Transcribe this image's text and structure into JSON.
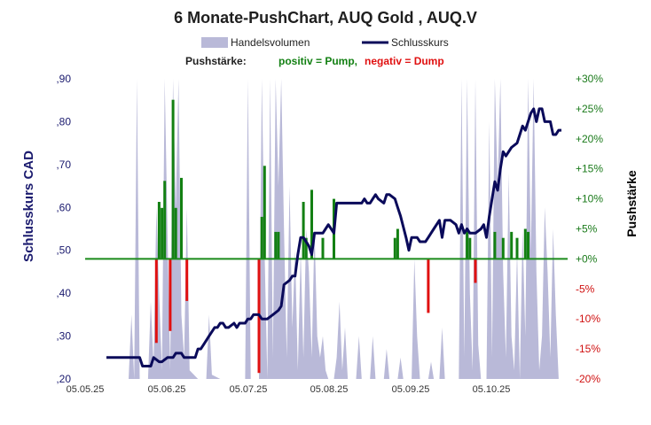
{
  "chart_data": {
    "type": "combo",
    "title": "6 Monate-PushChart,  AUQ Gold , AUQ.V",
    "legend": {
      "volume_label": "Handelsvolumen",
      "close_label": "Schlusskurs",
      "placement": "top"
    },
    "push_legend": {
      "prefix": "Pushstärke:",
      "positive": "positiv = Pump,",
      "negative": "negativ = Dump"
    },
    "ylabel_left": "Schlusskurs CAD",
    "ylabel_right": "Pushstärke",
    "ylim_left": [
      0.2,
      0.9
    ],
    "ylim_right": [
      -20,
      30
    ],
    "xlim": [
      "2025-05-05",
      "2025-10-31"
    ],
    "x_tick_labels": [
      "05.05.25",
      "05.06.25",
      "05.07.25",
      "05.08.25",
      "05.09.25",
      "05.10.25"
    ],
    "y_left_tick_labels": [
      ",90",
      ",80",
      ",70",
      ",60",
      ",50",
      ",40",
      ",30",
      ",20"
    ],
    "y_right_tick_labels": [
      "+30%",
      "+25%",
      "+20%",
      "+15%",
      "+10%",
      "+5%",
      "+0%",
      "-5%",
      "-10%",
      "-15%",
      "-20%"
    ],
    "colors": {
      "volume": "#b9b9d8",
      "close": "#0a0a5a",
      "pump": "#138013",
      "dump": "#e01010",
      "zero_line": "#1a8a1a"
    },
    "close_series": [
      [
        0,
        0.25
      ],
      [
        2,
        0.25
      ],
      [
        5,
        0.25
      ],
      [
        9,
        0.25
      ],
      [
        12,
        0.25
      ],
      [
        13,
        0.23
      ],
      [
        16,
        0.23
      ],
      [
        17,
        0.25
      ],
      [
        19,
        0.24
      ],
      [
        20,
        0.24
      ],
      [
        22,
        0.25
      ],
      [
        24,
        0.25
      ],
      [
        25,
        0.26
      ],
      [
        27,
        0.26
      ],
      [
        28,
        0.25
      ],
      [
        30,
        0.25
      ],
      [
        31,
        0.25
      ],
      [
        32,
        0.25
      ],
      [
        33,
        0.27
      ],
      [
        34,
        0.27
      ],
      [
        35,
        0.28
      ],
      [
        36,
        0.29
      ],
      [
        37,
        0.3
      ],
      [
        38,
        0.31
      ],
      [
        39,
        0.32
      ],
      [
        40,
        0.32
      ],
      [
        41,
        0.33
      ],
      [
        42,
        0.33
      ],
      [
        43,
        0.32
      ],
      [
        44,
        0.32
      ],
      [
        46,
        0.33
      ],
      [
        47,
        0.32
      ],
      [
        48,
        0.33
      ],
      [
        50,
        0.33
      ],
      [
        51,
        0.34
      ],
      [
        52,
        0.34
      ],
      [
        53,
        0.35
      ],
      [
        54,
        0.35
      ],
      [
        55,
        0.35
      ],
      [
        56,
        0.34
      ],
      [
        58,
        0.34
      ],
      [
        60,
        0.35
      ],
      [
        62,
        0.36
      ],
      [
        63,
        0.37
      ],
      [
        64,
        0.42
      ],
      [
        66,
        0.43
      ],
      [
        67,
        0.44
      ],
      [
        68,
        0.44
      ],
      [
        69,
        0.49
      ],
      [
        70,
        0.53
      ],
      [
        71,
        0.53
      ],
      [
        72,
        0.52
      ],
      [
        73,
        0.51
      ],
      [
        74,
        0.49
      ],
      [
        75,
        0.54
      ],
      [
        76,
        0.54
      ],
      [
        78,
        0.54
      ],
      [
        79,
        0.55
      ],
      [
        80,
        0.56
      ],
      [
        81,
        0.55
      ],
      [
        82,
        0.54
      ],
      [
        83,
        0.61
      ],
      [
        84,
        0.61
      ],
      [
        88,
        0.61
      ],
      [
        92,
        0.61
      ],
      [
        93,
        0.62
      ],
      [
        94,
        0.61
      ],
      [
        95,
        0.61
      ],
      [
        96,
        0.62
      ],
      [
        97,
        0.63
      ],
      [
        98,
        0.62
      ],
      [
        100,
        0.61
      ],
      [
        101,
        0.63
      ],
      [
        102,
        0.63
      ],
      [
        104,
        0.62
      ],
      [
        105,
        0.6
      ],
      [
        106,
        0.58
      ],
      [
        108,
        0.53
      ],
      [
        109,
        0.5
      ],
      [
        110,
        0.53
      ],
      [
        112,
        0.53
      ],
      [
        113,
        0.52
      ],
      [
        115,
        0.52
      ],
      [
        116,
        0.53
      ],
      [
        117,
        0.54
      ],
      [
        118,
        0.55
      ],
      [
        120,
        0.57
      ],
      [
        121,
        0.53
      ],
      [
        122,
        0.57
      ],
      [
        123,
        0.57
      ],
      [
        124,
        0.57
      ],
      [
        126,
        0.56
      ],
      [
        127,
        0.54
      ],
      [
        128,
        0.56
      ],
      [
        129,
        0.54
      ],
      [
        130,
        0.55
      ],
      [
        131,
        0.54
      ],
      [
        133,
        0.54
      ],
      [
        135,
        0.55
      ],
      [
        136,
        0.56
      ],
      [
        137,
        0.53
      ],
      [
        138,
        0.58
      ],
      [
        140,
        0.66
      ],
      [
        141,
        0.64
      ],
      [
        142,
        0.69
      ],
      [
        143,
        0.73
      ],
      [
        144,
        0.72
      ],
      [
        146,
        0.74
      ],
      [
        148,
        0.75
      ],
      [
        149,
        0.77
      ],
      [
        150,
        0.79
      ],
      [
        151,
        0.78
      ],
      [
        153,
        0.82
      ],
      [
        154,
        0.83
      ],
      [
        155,
        0.8
      ],
      [
        156,
        0.83
      ],
      [
        157,
        0.83
      ],
      [
        158,
        0.8
      ],
      [
        159,
        0.8
      ],
      [
        160,
        0.8
      ],
      [
        161,
        0.77
      ],
      [
        162,
        0.77
      ],
      [
        163,
        0.78
      ],
      [
        164,
        0.78
      ]
    ],
    "push_series": [
      [
        18,
        -14
      ],
      [
        19,
        9.5
      ],
      [
        20,
        8.5
      ],
      [
        21,
        13
      ],
      [
        23,
        -12
      ],
      [
        24,
        26.5
      ],
      [
        25,
        8.5
      ],
      [
        27,
        13.5
      ],
      [
        29,
        -7
      ],
      [
        55,
        -19
      ],
      [
        56,
        7
      ],
      [
        57,
        15.5
      ],
      [
        61,
        4.5
      ],
      [
        62,
        4.5
      ],
      [
        64,
        0
      ],
      [
        70,
        0
      ],
      [
        71,
        9.5
      ],
      [
        72,
        3.5
      ],
      [
        74,
        11.5
      ],
      [
        78,
        3.5
      ],
      [
        82,
        10
      ],
      [
        104,
        3.5
      ],
      [
        105,
        5
      ],
      [
        116,
        -9
      ],
      [
        130,
        5
      ],
      [
        131,
        3.5
      ],
      [
        133,
        -4
      ],
      [
        140,
        4.5
      ],
      [
        143,
        3.5
      ],
      [
        146,
        4.5
      ],
      [
        148,
        3.5
      ],
      [
        151,
        5
      ],
      [
        152,
        4.5
      ]
    ],
    "volume_series": [
      [
        0,
        0.2
      ],
      [
        5,
        0.2
      ],
      [
        8,
        0.2
      ],
      [
        9,
        0.35
      ],
      [
        10,
        0.2
      ],
      [
        11,
        0.9
      ],
      [
        12,
        0.2
      ],
      [
        15,
        0.2
      ],
      [
        16,
        0.38
      ],
      [
        17,
        0.23
      ],
      [
        18,
        0.6
      ],
      [
        19,
        0.4
      ],
      [
        20,
        0.22
      ],
      [
        21,
        0.9
      ],
      [
        22,
        0.55
      ],
      [
        23,
        0.22
      ],
      [
        24,
        0.9
      ],
      [
        25,
        0.6
      ],
      [
        26,
        0.9
      ],
      [
        27,
        0.35
      ],
      [
        28,
        0.25
      ],
      [
        29,
        0.6
      ],
      [
        30,
        0.22
      ],
      [
        33,
        0.2
      ],
      [
        36,
        0.2
      ],
      [
        37,
        0.35
      ],
      [
        38,
        0.21
      ],
      [
        41,
        0.2
      ],
      [
        44,
        0.2
      ],
      [
        47,
        0.2
      ],
      [
        50,
        0.2
      ],
      [
        51,
        0.9
      ],
      [
        52,
        0.2
      ],
      [
        55,
        0.2
      ],
      [
        56,
        0.9
      ],
      [
        57,
        0.5
      ],
      [
        58,
        0.2
      ],
      [
        59,
        0.9
      ],
      [
        60,
        0.25
      ],
      [
        61,
        0.9
      ],
      [
        62,
        0.65
      ],
      [
        63,
        0.9
      ],
      [
        64,
        0.55
      ],
      [
        65,
        0.25
      ],
      [
        66,
        0.65
      ],
      [
        67,
        0.32
      ],
      [
        68,
        0.5
      ],
      [
        69,
        0.22
      ],
      [
        70,
        0.5
      ],
      [
        71,
        0.25
      ],
      [
        72,
        0.55
      ],
      [
        73,
        0.45
      ],
      [
        74,
        0.25
      ],
      [
        75,
        0.55
      ],
      [
        76,
        0.3
      ],
      [
        77,
        0.25
      ],
      [
        78,
        0.3
      ],
      [
        79,
        0.22
      ],
      [
        80,
        0.2
      ],
      [
        82,
        0.2
      ],
      [
        83,
        0.25
      ],
      [
        84,
        0.38
      ],
      [
        85,
        0.22
      ],
      [
        86,
        0.32
      ],
      [
        87,
        0.2
      ],
      [
        90,
        0.2
      ],
      [
        91,
        0.3
      ],
      [
        92,
        0.2
      ],
      [
        95,
        0.2
      ],
      [
        96,
        0.3
      ],
      [
        97,
        0.2
      ],
      [
        100,
        0.2
      ],
      [
        101,
        0.27
      ],
      [
        102,
        0.2
      ],
      [
        105,
        0.2
      ],
      [
        106,
        0.25
      ],
      [
        107,
        0.2
      ],
      [
        110,
        0.2
      ],
      [
        111,
        0.48
      ],
      [
        112,
        0.3
      ],
      [
        113,
        0.2
      ],
      [
        116,
        0.2
      ],
      [
        117,
        0.24
      ],
      [
        118,
        0.2
      ],
      [
        120,
        0.2
      ],
      [
        121,
        0.32
      ],
      [
        122,
        0.2
      ],
      [
        125,
        0.2
      ],
      [
        127,
        0.2
      ],
      [
        128,
        0.9
      ],
      [
        129,
        0.25
      ],
      [
        130,
        0.9
      ],
      [
        131,
        0.4
      ],
      [
        132,
        0.22
      ],
      [
        133,
        0.9
      ],
      [
        134,
        0.28
      ],
      [
        135,
        0.2
      ],
      [
        137,
        0.2
      ],
      [
        138,
        0.8
      ],
      [
        139,
        0.25
      ],
      [
        140,
        0.9
      ],
      [
        141,
        0.65
      ],
      [
        142,
        0.9
      ],
      [
        143,
        0.45
      ],
      [
        144,
        0.25
      ],
      [
        145,
        0.68
      ],
      [
        146,
        0.3
      ],
      [
        147,
        0.22
      ],
      [
        148,
        0.5
      ],
      [
        149,
        0.2
      ],
      [
        150,
        0.55
      ],
      [
        151,
        0.3
      ],
      [
        152,
        0.9
      ],
      [
        153,
        0.5
      ],
      [
        154,
        0.9
      ],
      [
        155,
        0.45
      ],
      [
        156,
        0.22
      ],
      [
        157,
        0.3
      ],
      [
        158,
        0.6
      ],
      [
        159,
        0.45
      ],
      [
        160,
        0.25
      ],
      [
        161,
        0.55
      ],
      [
        162,
        0.35
      ],
      [
        163,
        0.2
      ],
      [
        164,
        0.2
      ]
    ]
  }
}
